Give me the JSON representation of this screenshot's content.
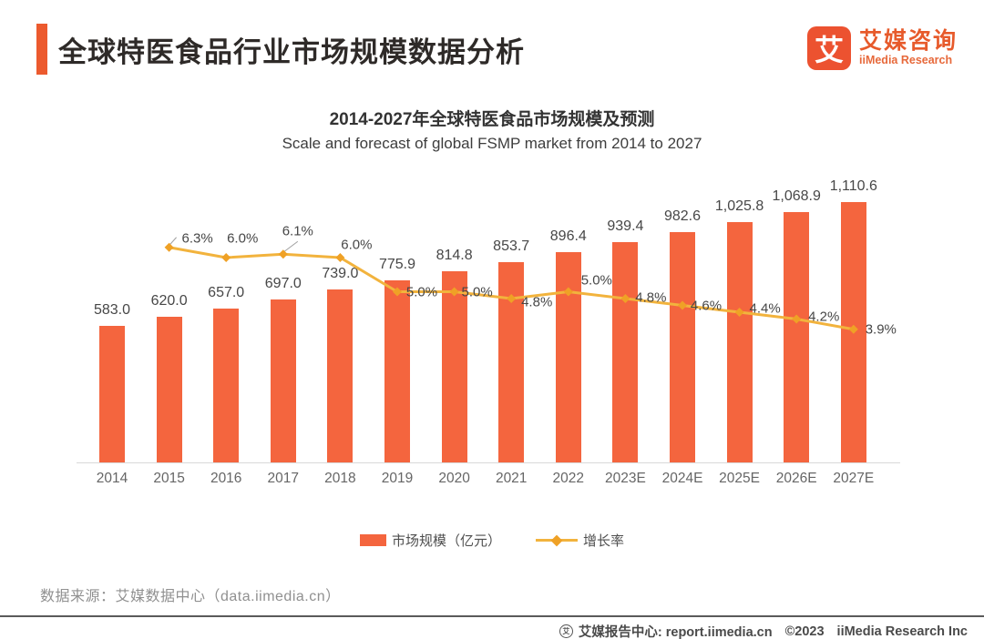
{
  "header": {
    "title": "全球特医食品行业市场规模数据分析"
  },
  "logo": {
    "icon_glyph": "艾",
    "name_cn": "艾媒咨询",
    "name_en": "iiMedia Research"
  },
  "chart_data": {
    "type": "bar",
    "title": "2014-2027年全球特医食品市场规模及预测",
    "subtitle": "Scale and forecast of global FSMP market from 2014 to 2027",
    "categories": [
      "2014",
      "2015",
      "2016",
      "2017",
      "2018",
      "2019",
      "2020",
      "2021",
      "2022",
      "2023E",
      "2024E",
      "2025E",
      "2026E",
      "2027E"
    ],
    "series": [
      {
        "name": "市场规模（亿元）",
        "type": "bar",
        "color": "#F4653E",
        "values": [
          583.0,
          620.0,
          657.0,
          697.0,
          739.0,
          775.9,
          814.8,
          853.7,
          896.4,
          939.4,
          982.6,
          1025.8,
          1068.9,
          1110.6
        ],
        "labels": [
          "583.0",
          "620.0",
          "657.0",
          "697.0",
          "739.0",
          "775.9",
          "814.8",
          "853.7",
          "896.4",
          "939.4",
          "982.6",
          "1,025.8",
          "1,068.9",
          "1,110.6"
        ]
      },
      {
        "name": "增长率",
        "type": "line",
        "color": "#F2B33D",
        "marker_color": "#EFA126",
        "values": [
          null,
          6.3,
          6.0,
          6.1,
          6.0,
          5.0,
          5.0,
          4.8,
          5.0,
          4.8,
          4.6,
          4.4,
          4.2,
          3.9
        ],
        "labels": [
          null,
          "6.3%",
          "6.0%",
          "6.1%",
          "6.0%",
          "5.0%",
          "5.0%",
          "4.8%",
          "5.0%",
          "4.8%",
          "4.6%",
          "4.4%",
          "4.2%",
          "3.9%"
        ],
        "label_offsets": [
          null,
          [
            31,
            -10
          ],
          [
            18,
            -21
          ],
          [
            16,
            -25
          ],
          [
            18,
            -14
          ],
          [
            27,
            0
          ],
          [
            25,
            0
          ],
          [
            28,
            4
          ],
          [
            31,
            -13
          ],
          [
            28,
            -1
          ],
          [
            26,
            0
          ],
          [
            28,
            -4
          ],
          [
            30,
            -3
          ],
          [
            30,
            0
          ]
        ]
      }
    ],
    "legend": [
      {
        "label": "市场规模（亿元）",
        "swatch": "bar",
        "color": "#F4653E"
      },
      {
        "label": "增长率",
        "swatch": "line",
        "color": "#F2B33D"
      }
    ],
    "legend_position": "bottom",
    "y_axis_visible": false,
    "bar_ylim": [
      0,
      1180
    ],
    "line_ylim_pct": [
      0,
      13.5
    ]
  },
  "source_note": "数据来源：艾媒数据中心（data.iimedia.cn）",
  "footer": {
    "report_center": "艾媒报告中心: report.iimedia.cn",
    "copyright": "©2023",
    "company": "iiMedia Research Inc"
  }
}
